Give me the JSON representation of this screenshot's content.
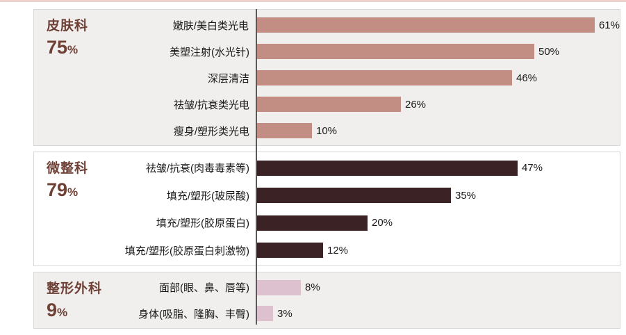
{
  "page": {
    "accent_line_color": "#ecd2cb",
    "axis_color": "#595959",
    "panel_border_color": "#d8d8d8",
    "title_color": "#6f4136",
    "text_color": "#1a1a1a"
  },
  "chart_data": {
    "type": "bar",
    "orientation": "horizontal",
    "unit": "%",
    "xlim": [
      0,
      65
    ],
    "grid": false,
    "legend": false,
    "groups": [
      {
        "title": "皮肤科",
        "total": "75%",
        "bar_color": "#c28e83",
        "background": "#f0efee",
        "items": [
          {
            "label": "嫩肤/美白类光电",
            "value": 61,
            "value_label": "61%"
          },
          {
            "label": "美塑注射(水光针)",
            "value": 50,
            "value_label": "50%"
          },
          {
            "label": "深层清洁",
            "value": 46,
            "value_label": "46%"
          },
          {
            "label": "祛皱/抗衰类光电",
            "value": 26,
            "value_label": "26%"
          },
          {
            "label": "瘦身/塑形类光电",
            "value": 10,
            "value_label": "10%"
          }
        ]
      },
      {
        "title": "微整科",
        "total": "79%",
        "bar_color": "#3b2225",
        "background": "#ffffff",
        "items": [
          {
            "label": "祛皱/抗衰(肉毒毒素等)",
            "value": 47,
            "value_label": "47%"
          },
          {
            "label": "填充/塑形(玻尿酸)",
            "value": 35,
            "value_label": "35%"
          },
          {
            "label": "填充/塑形(胶原蛋白)",
            "value": 20,
            "value_label": "20%"
          },
          {
            "label": "填充/塑形(胶原蛋白刺激物)",
            "value": 12,
            "value_label": "12%"
          }
        ]
      },
      {
        "title": "整形外科",
        "total": "9%",
        "bar_color": "#ddc1cf",
        "background": "#f0efee",
        "items": [
          {
            "label": "面部(眼、鼻、唇等)",
            "value": 8,
            "value_label": "8%"
          },
          {
            "label": "身体(吸脂、隆胸、丰臀)",
            "value": 3,
            "value_label": "3%"
          }
        ]
      }
    ]
  }
}
